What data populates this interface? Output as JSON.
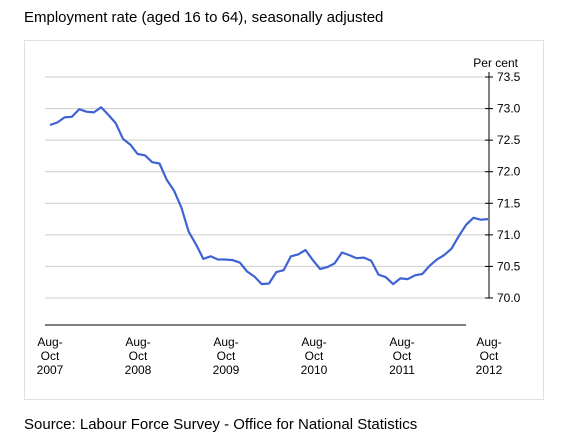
{
  "chart_title": "Employment rate (aged 16 to 64), seasonally adjusted",
  "source": "Source: Labour Force Survey - Office for National Statistics",
  "colors": {
    "line": "#3f63d4",
    "grid": "#cccccc",
    "axis": "#000000"
  },
  "chart_data": {
    "type": "line",
    "title": "Employment rate (aged 16 to 64), seasonally adjusted",
    "ylabel": "Per cent",
    "ylim": [
      69.7,
      73.5
    ],
    "yticks": [
      "73.5",
      "73.0",
      "72.5",
      "72.0",
      "71.5",
      "71.0",
      "70.5",
      "70.0"
    ],
    "ytick_values": [
      73.5,
      73.0,
      72.5,
      72.0,
      71.5,
      71.0,
      70.5,
      70.0
    ],
    "xticks": [
      [
        "Aug-",
        "Oct",
        "2007"
      ],
      [
        "Aug-",
        "Oct",
        "2008"
      ],
      [
        "Aug-",
        "Oct",
        "2009"
      ],
      [
        "Aug-",
        "Oct",
        "2010"
      ],
      [
        "Aug-",
        "Oct",
        "2011"
      ],
      [
        "Aug-",
        "Oct",
        "2012"
      ]
    ],
    "grid": true,
    "series": [
      {
        "values": [
          72.74,
          72.78,
          72.86,
          72.87,
          72.99,
          72.95,
          72.94,
          73.02,
          72.9,
          72.77,
          72.52,
          72.43,
          72.28,
          72.26,
          72.15,
          72.13,
          71.87,
          71.7,
          71.43,
          71.05,
          70.85,
          70.62,
          70.66,
          70.61,
          70.61,
          70.6,
          70.56,
          70.42,
          70.34,
          70.22,
          70.23,
          70.41,
          70.44,
          70.66,
          70.69,
          70.76,
          70.6,
          70.46,
          70.49,
          70.55,
          70.72,
          70.68,
          70.63,
          70.64,
          70.59,
          70.37,
          70.33,
          70.22,
          70.31,
          70.3,
          70.36,
          70.38,
          70.51,
          70.61,
          70.68,
          70.78,
          70.98,
          71.16,
          71.27,
          71.24,
          71.25
        ]
      }
    ]
  }
}
